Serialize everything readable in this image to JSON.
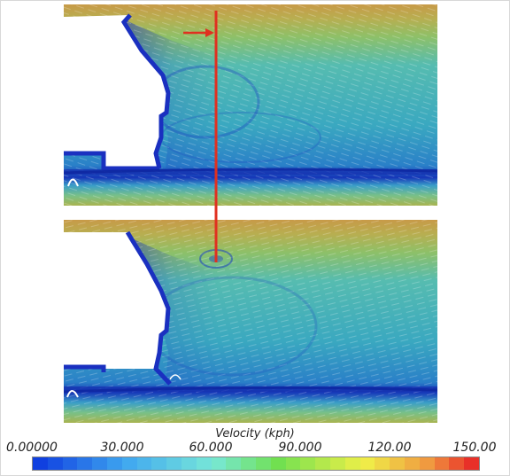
{
  "figure": {
    "quantity_label": "Velocity (kph)",
    "colorbar_ticks": [
      "0.00000",
      "30.000",
      "60.000",
      "90.000",
      "120.00",
      "150.00"
    ],
    "colorbar_range": [
      0,
      150
    ],
    "colorbar_segments": 30,
    "panels": [
      "top",
      "bottom"
    ],
    "visualization": "surface line integral convolution streamlines colored by velocity",
    "colors": {
      "low": "#1030d0",
      "mid": "#40c0c0",
      "high": "#c8a040",
      "marker": "#e03020"
    }
  }
}
